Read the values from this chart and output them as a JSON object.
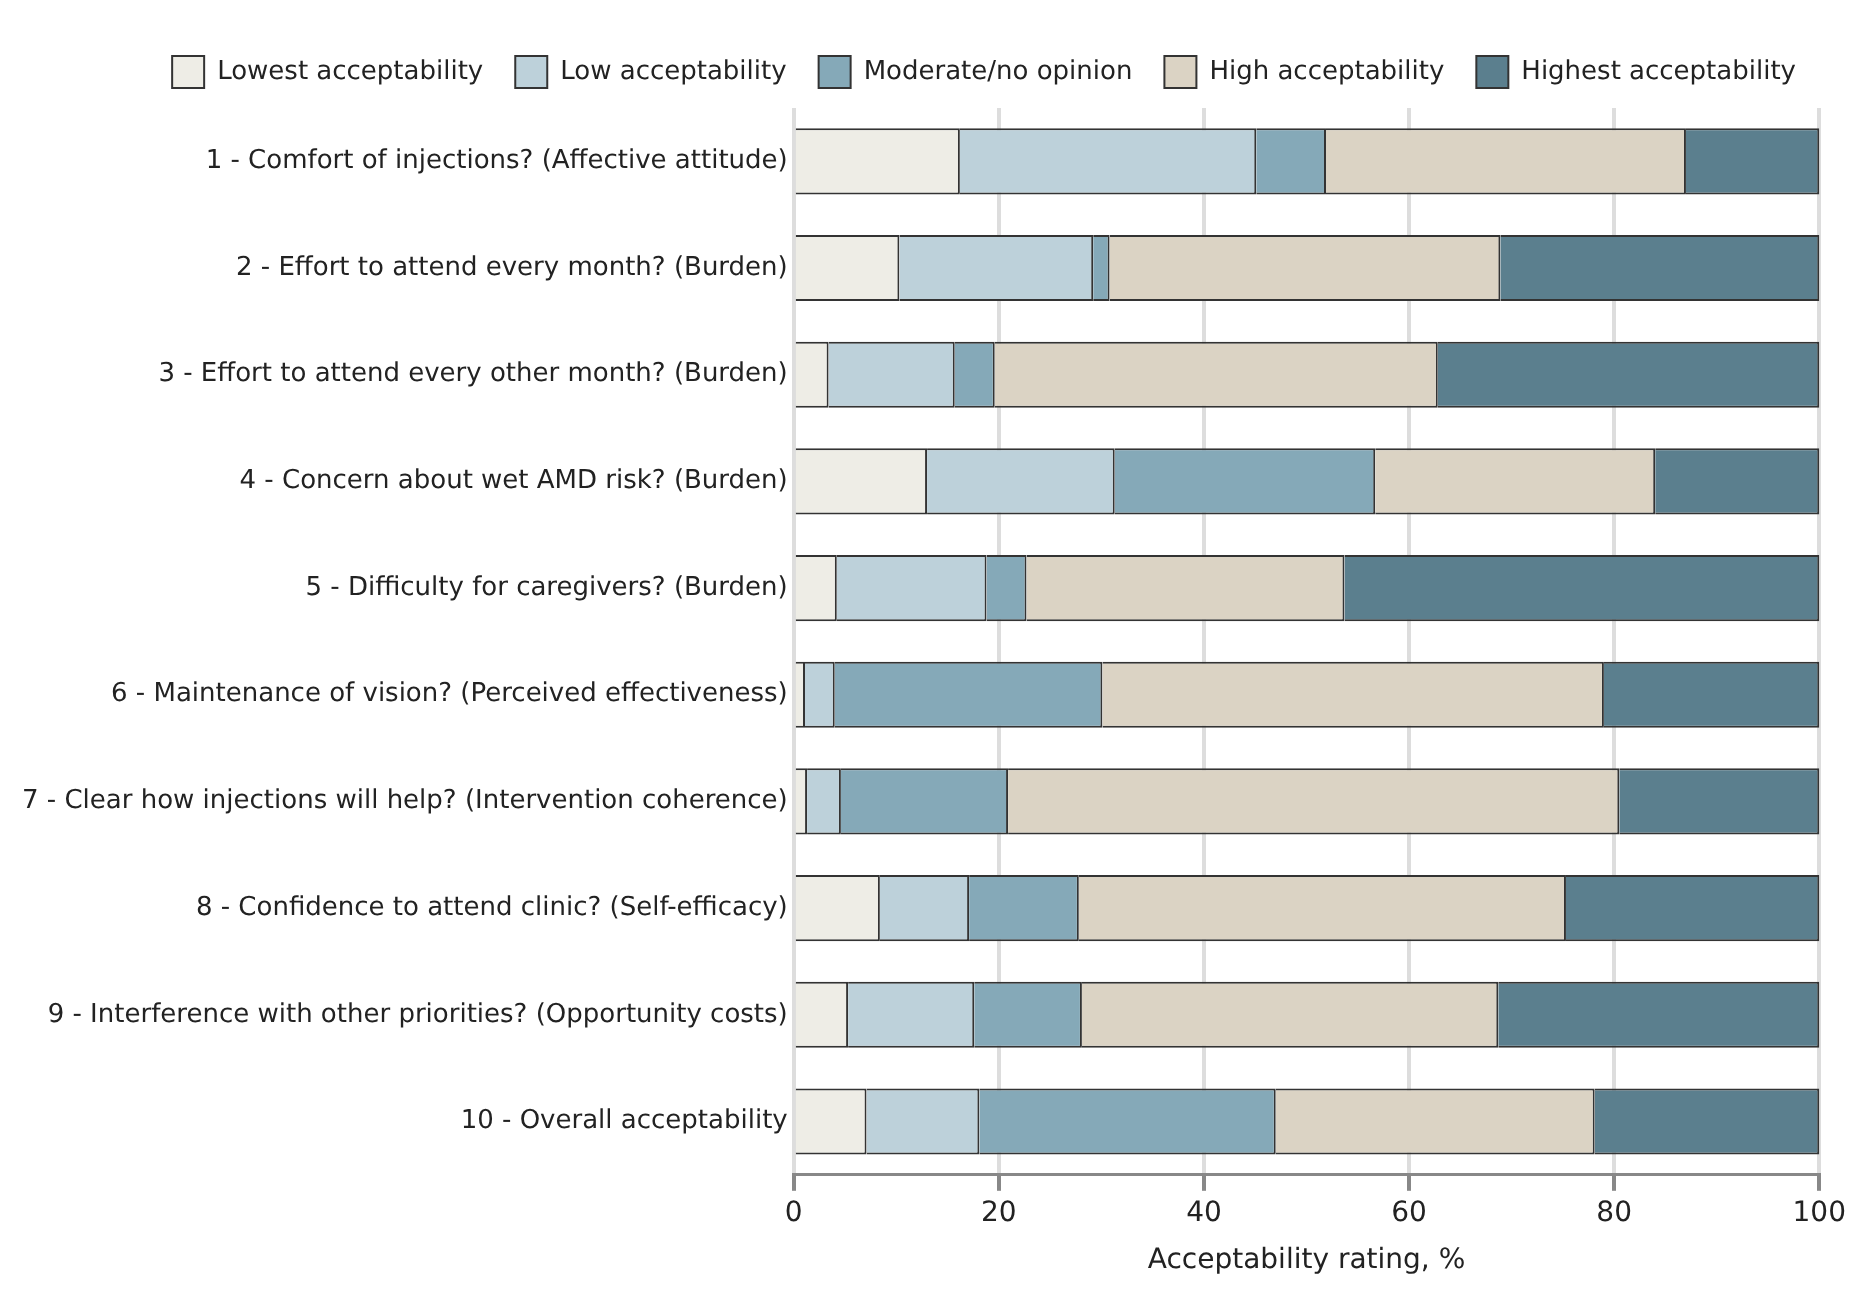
{
  "chart_data": {
    "type": "bar",
    "orientation": "horizontal",
    "stacked": true,
    "xlabel": "Acceptability rating, %",
    "categories": [
      "1 - Comfort of injections? (Affective attitude)",
      "2 - Effort to attend every month? (Burden)",
      "3 - Effort to attend every other month? (Burden)",
      "4 - Concern about wet AMD risk? (Burden)",
      "5 - Difficulty for caregivers? (Burden)",
      "6 - Maintenance of vision? (Perceived effectiveness)",
      "7 - Clear how injections will help? (Intervention coherence)",
      "8 - Confidence to attend clinic? (Self-efficacy)",
      "9 - Interference with other priorities? (Opportunity costs)",
      "10 - Overall acceptability"
    ],
    "series": [
      {
        "name": "Lowest acceptability",
        "color": "#eeede6",
        "values": [
          16.2,
          10.3,
          3.4,
          13.0,
          4.2,
          1.1,
          1.3,
          8.4,
          5.3,
          7.1
        ]
      },
      {
        "name": "Low acceptability",
        "color": "#bdd1da",
        "values": [
          28.9,
          18.9,
          12.3,
          18.3,
          14.6,
          2.9,
          3.3,
          8.7,
          12.3,
          11.0
        ]
      },
      {
        "name": "Moderate/no opinion",
        "color": "#85a9b8",
        "values": [
          6.8,
          1.6,
          3.9,
          25.4,
          3.9,
          26.1,
          16.3,
          10.7,
          10.5,
          28.9
        ]
      },
      {
        "name": "High acceptability",
        "color": "#dbd3c4",
        "values": [
          35.1,
          38.1,
          43.2,
          27.3,
          31.0,
          48.9,
          59.6,
          47.5,
          40.6,
          31.1
        ]
      },
      {
        "name": "Highest acceptability",
        "color": "#5b7f8e",
        "values": [
          13.0,
          31.1,
          37.2,
          16.0,
          46.3,
          21.0,
          19.5,
          24.7,
          31.3,
          21.9
        ]
      }
    ],
    "xlim": [
      0,
      100
    ],
    "xticks": [
      0,
      20,
      40,
      60,
      80,
      100
    ],
    "grid": "x",
    "legend": "top"
  }
}
